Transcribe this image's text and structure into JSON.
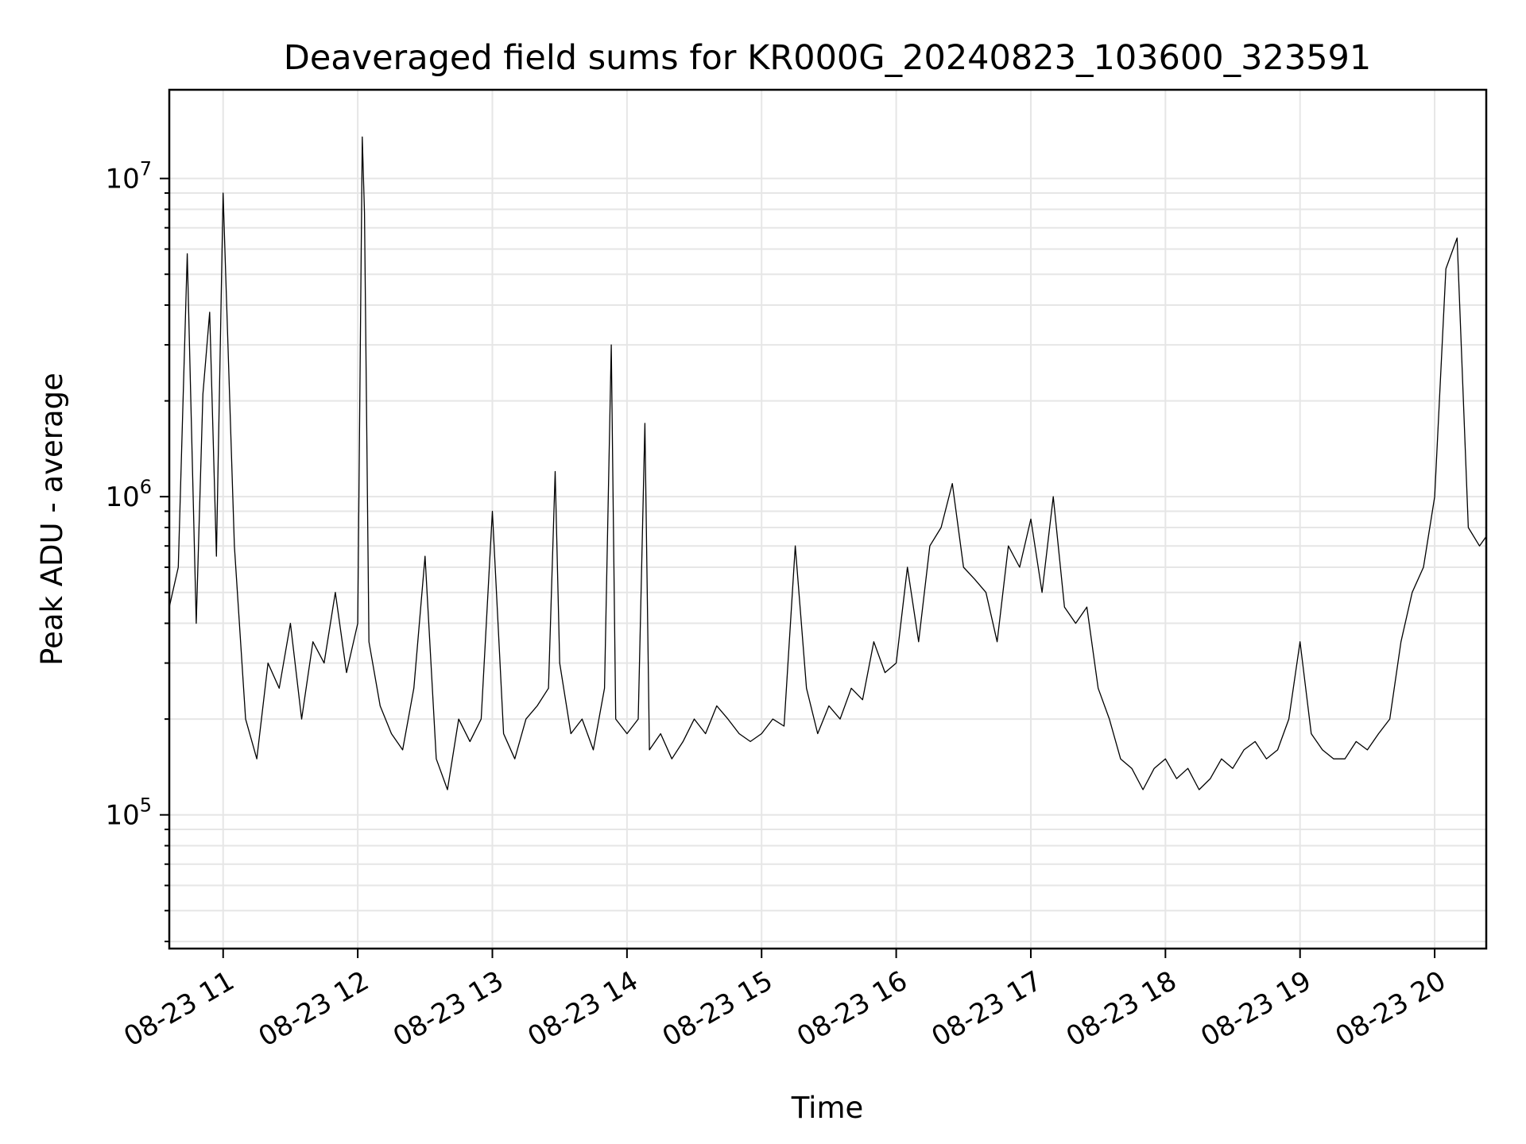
{
  "chart_data": {
    "type": "line",
    "title": "Deaveraged field sums for KR000G_20240823_103600_323591",
    "xlabel": "Time",
    "ylabel": "Peak ADU - average",
    "yscale": "log",
    "ylim": [
      38000,
      19000000
    ],
    "xlim": [
      "2024-08-23 10:36",
      "2024-08-23 20:23"
    ],
    "grid": true,
    "x_ticks": [
      "08-23 11",
      "08-23 12",
      "08-23 13",
      "08-23 14",
      "08-23 15",
      "08-23 16",
      "08-23 17",
      "08-23 18",
      "08-23 19",
      "08-23 20"
    ],
    "y_ticks": [
      {
        "base": "10",
        "exp": "5",
        "value": 100000
      },
      {
        "base": "10",
        "exp": "6",
        "value": 1000000
      },
      {
        "base": "10",
        "exp": "7",
        "value": 10000000
      }
    ],
    "series": [
      {
        "color": "#000000",
        "x": [
          "2024-08-23 10:36",
          "2024-08-23 10:40",
          "2024-08-23 10:44",
          "2024-08-23 10:48",
          "2024-08-23 10:51",
          "2024-08-23 10:54",
          "2024-08-23 10:57",
          "2024-08-23 11:00",
          "2024-08-23 11:05",
          "2024-08-23 11:10",
          "2024-08-23 11:15",
          "2024-08-23 11:20",
          "2024-08-23 11:25",
          "2024-08-23 11:30",
          "2024-08-23 11:35",
          "2024-08-23 11:40",
          "2024-08-23 11:45",
          "2024-08-23 11:50",
          "2024-08-23 11:55",
          "2024-08-23 12:00",
          "2024-08-23 12:02",
          "2024-08-23 12:03",
          "2024-08-23 12:05",
          "2024-08-23 12:10",
          "2024-08-23 12:15",
          "2024-08-23 12:20",
          "2024-08-23 12:25",
          "2024-08-23 12:30",
          "2024-08-23 12:35",
          "2024-08-23 12:40",
          "2024-08-23 12:45",
          "2024-08-23 12:50",
          "2024-08-23 12:55",
          "2024-08-23 13:00",
          "2024-08-23 13:05",
          "2024-08-23 13:10",
          "2024-08-23 13:15",
          "2024-08-23 13:20",
          "2024-08-23 13:25",
          "2024-08-23 13:28",
          "2024-08-23 13:30",
          "2024-08-23 13:35",
          "2024-08-23 13:40",
          "2024-08-23 13:45",
          "2024-08-23 13:50",
          "2024-08-23 13:53",
          "2024-08-23 13:55",
          "2024-08-23 14:00",
          "2024-08-23 14:05",
          "2024-08-23 14:08",
          "2024-08-23 14:10",
          "2024-08-23 14:15",
          "2024-08-23 14:20",
          "2024-08-23 14:25",
          "2024-08-23 14:30",
          "2024-08-23 14:35",
          "2024-08-23 14:40",
          "2024-08-23 14:45",
          "2024-08-23 14:50",
          "2024-08-23 14:55",
          "2024-08-23 15:00",
          "2024-08-23 15:05",
          "2024-08-23 15:10",
          "2024-08-23 15:15",
          "2024-08-23 15:20",
          "2024-08-23 15:25",
          "2024-08-23 15:30",
          "2024-08-23 15:35",
          "2024-08-23 15:40",
          "2024-08-23 15:45",
          "2024-08-23 15:50",
          "2024-08-23 15:55",
          "2024-08-23 16:00",
          "2024-08-23 16:05",
          "2024-08-23 16:10",
          "2024-08-23 16:15",
          "2024-08-23 16:20",
          "2024-08-23 16:25",
          "2024-08-23 16:30",
          "2024-08-23 16:35",
          "2024-08-23 16:40",
          "2024-08-23 16:45",
          "2024-08-23 16:50",
          "2024-08-23 16:55",
          "2024-08-23 17:00",
          "2024-08-23 17:05",
          "2024-08-23 17:10",
          "2024-08-23 17:15",
          "2024-08-23 17:20",
          "2024-08-23 17:25",
          "2024-08-23 17:30",
          "2024-08-23 17:35",
          "2024-08-23 17:40",
          "2024-08-23 17:45",
          "2024-08-23 17:50",
          "2024-08-23 17:55",
          "2024-08-23 18:00",
          "2024-08-23 18:05",
          "2024-08-23 18:10",
          "2024-08-23 18:15",
          "2024-08-23 18:20",
          "2024-08-23 18:25",
          "2024-08-23 18:30",
          "2024-08-23 18:35",
          "2024-08-23 18:40",
          "2024-08-23 18:45",
          "2024-08-23 18:50",
          "2024-08-23 18:55",
          "2024-08-23 19:00",
          "2024-08-23 19:05",
          "2024-08-23 19:10",
          "2024-08-23 19:15",
          "2024-08-23 19:20",
          "2024-08-23 19:25",
          "2024-08-23 19:30",
          "2024-08-23 19:35",
          "2024-08-23 19:40",
          "2024-08-23 19:45",
          "2024-08-23 19:50",
          "2024-08-23 19:55",
          "2024-08-23 20:00",
          "2024-08-23 20:05",
          "2024-08-23 20:10",
          "2024-08-23 20:15",
          "2024-08-23 20:20",
          "2024-08-23 20:23"
        ],
        "values": [
          450000,
          600000,
          5800000,
          400000,
          2100000,
          3800000,
          650000,
          9000000,
          700000,
          200000,
          150000,
          300000,
          250000,
          400000,
          200000,
          350000,
          300000,
          500000,
          280000,
          400000,
          13500000,
          7800000,
          350000,
          220000,
          180000,
          160000,
          250000,
          650000,
          150000,
          120000,
          200000,
          170000,
          200000,
          900000,
          180000,
          150000,
          200000,
          220000,
          250000,
          1200000,
          300000,
          180000,
          200000,
          160000,
          250000,
          3000000,
          200000,
          180000,
          200000,
          1700000,
          160000,
          180000,
          150000,
          170000,
          200000,
          180000,
          220000,
          200000,
          180000,
          170000,
          180000,
          200000,
          190000,
          700000,
          250000,
          180000,
          220000,
          200000,
          250000,
          230000,
          350000,
          280000,
          300000,
          600000,
          350000,
          700000,
          800000,
          1100000,
          600000,
          550000,
          500000,
          350000,
          700000,
          600000,
          850000,
          500000,
          1000000,
          450000,
          400000,
          450000,
          250000,
          200000,
          150000,
          140000,
          120000,
          140000,
          150000,
          130000,
          140000,
          120000,
          130000,
          150000,
          140000,
          160000,
          170000,
          150000,
          160000,
          200000,
          350000,
          180000,
          160000,
          150000,
          150000,
          170000,
          160000,
          180000,
          200000,
          350000,
          500000,
          600000,
          1000000,
          5200000,
          6500000,
          800000,
          700000,
          750000
        ]
      }
    ]
  }
}
